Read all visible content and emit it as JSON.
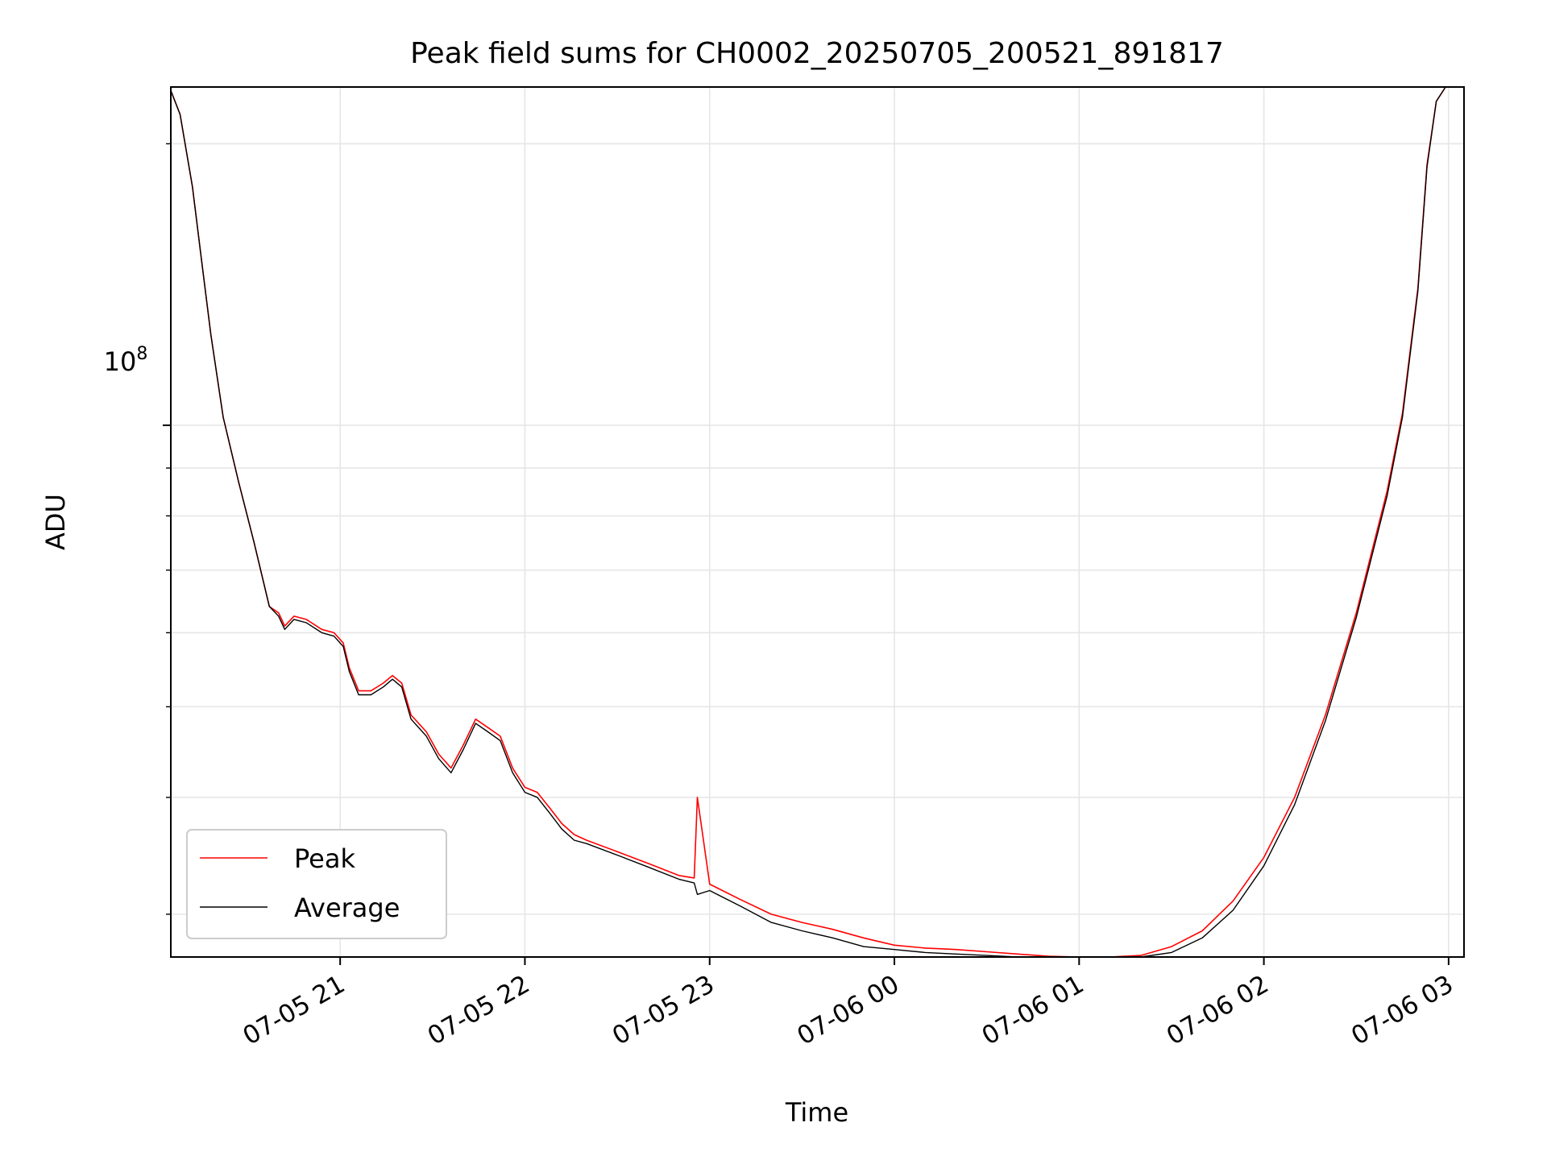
{
  "chart_data": {
    "type": "line",
    "title": "Peak field sums for CH0002_20250705_200521_891817",
    "xlabel": "Time",
    "ylabel": "ADU",
    "y_scale": "log",
    "grid": true,
    "legend_position": "lower-left",
    "x_ticks": [
      {
        "value": "2025-07-05 21:00",
        "label": "07-05 21"
      },
      {
        "value": "2025-07-05 22:00",
        "label": "07-05 22"
      },
      {
        "value": "2025-07-05 23:00",
        "label": "07-05 23"
      },
      {
        "value": "2025-07-06 00:00",
        "label": "07-06 00"
      },
      {
        "value": "2025-07-06 01:00",
        "label": "07-06 01"
      },
      {
        "value": "2025-07-06 02:00",
        "label": "07-06 02"
      },
      {
        "value": "2025-07-06 03:00",
        "label": "07-06 03"
      }
    ],
    "y_major_ticks": [
      {
        "value": 100000000,
        "label": "10^8"
      }
    ],
    "y_minor_ticks": [
      30000000,
      40000000,
      50000000,
      60000000,
      70000000,
      80000000,
      90000000,
      200000000
    ],
    "xlim": [
      "2025-07-05 20:05",
      "2025-07-06 03:05"
    ],
    "ylim": [
      27000000,
      230000000
    ],
    "series": [
      {
        "name": "Peak",
        "color": "#ff0000",
        "x": [
          "2025-07-05 20:05",
          "2025-07-05 20:08",
          "2025-07-05 20:12",
          "2025-07-05 20:15",
          "2025-07-05 20:18",
          "2025-07-05 20:22",
          "2025-07-05 20:27",
          "2025-07-05 20:32",
          "2025-07-05 20:37",
          "2025-07-05 20:40",
          "2025-07-05 20:42",
          "2025-07-05 20:45",
          "2025-07-05 20:49",
          "2025-07-05 20:54",
          "2025-07-05 20:58",
          "2025-07-05 21:01",
          "2025-07-05 21:03",
          "2025-07-05 21:06",
          "2025-07-05 21:10",
          "2025-07-05 21:14",
          "2025-07-05 21:17",
          "2025-07-05 21:20",
          "2025-07-05 21:23",
          "2025-07-05 21:28",
          "2025-07-05 21:32",
          "2025-07-05 21:36",
          "2025-07-05 21:40",
          "2025-07-05 21:44",
          "2025-07-05 21:48",
          "2025-07-05 21:52",
          "2025-07-05 21:56",
          "2025-07-05 22:00",
          "2025-07-05 22:04",
          "2025-07-05 22:08",
          "2025-07-05 22:12",
          "2025-07-05 22:16",
          "2025-07-05 22:20",
          "2025-07-05 22:30",
          "2025-07-05 22:40",
          "2025-07-05 22:50",
          "2025-07-05 22:55",
          "2025-07-05 22:56",
          "2025-07-05 23:00",
          "2025-07-05 23:10",
          "2025-07-05 23:20",
          "2025-07-05 23:30",
          "2025-07-05 23:40",
          "2025-07-05 23:50",
          "2025-07-06 00:00",
          "2025-07-06 00:10",
          "2025-07-06 00:20",
          "2025-07-06 00:30",
          "2025-07-06 00:40",
          "2025-07-06 00:50",
          "2025-07-06 01:00",
          "2025-07-06 01:10",
          "2025-07-06 01:20",
          "2025-07-06 01:30",
          "2025-07-06 01:40",
          "2025-07-06 01:50",
          "2025-07-06 02:00",
          "2025-07-06 02:10",
          "2025-07-06 02:20",
          "2025-07-06 02:30",
          "2025-07-06 02:40",
          "2025-07-06 02:45",
          "2025-07-06 02:50",
          "2025-07-06 02:53",
          "2025-07-06 02:56",
          "2025-07-06 02:59"
        ],
        "values": [
          228000000,
          215000000,
          180000000,
          150000000,
          125000000,
          102000000,
          87000000,
          75000000,
          64000000,
          63000000,
          61000000,
          62500000,
          62000000,
          60500000,
          60000000,
          58500000,
          55000000,
          52000000,
          52000000,
          53000000,
          54000000,
          53000000,
          49000000,
          47000000,
          44500000,
          43000000,
          45500000,
          48500000,
          47500000,
          46500000,
          43000000,
          41000000,
          40500000,
          39000000,
          37500000,
          36500000,
          36000000,
          35000000,
          34000000,
          33000000,
          32800000,
          40000000,
          32300000,
          31100000,
          30000000,
          29400000,
          28900000,
          28300000,
          27800000,
          27600000,
          27500000,
          27350000,
          27200000,
          27050000,
          26950000,
          26900000,
          27100000,
          27700000,
          28800000,
          31000000,
          34500000,
          40000000,
          49000000,
          63000000,
          85000000,
          103000000,
          140000000,
          190000000,
          222000000,
          230000000
        ]
      },
      {
        "name": "Average",
        "color": "#000000",
        "x": [
          "2025-07-05 20:05",
          "2025-07-05 20:08",
          "2025-07-05 20:12",
          "2025-07-05 20:15",
          "2025-07-05 20:18",
          "2025-07-05 20:22",
          "2025-07-05 20:27",
          "2025-07-05 20:32",
          "2025-07-05 20:37",
          "2025-07-05 20:40",
          "2025-07-05 20:42",
          "2025-07-05 20:45",
          "2025-07-05 20:49",
          "2025-07-05 20:54",
          "2025-07-05 20:58",
          "2025-07-05 21:01",
          "2025-07-05 21:03",
          "2025-07-05 21:06",
          "2025-07-05 21:10",
          "2025-07-05 21:14",
          "2025-07-05 21:17",
          "2025-07-05 21:20",
          "2025-07-05 21:23",
          "2025-07-05 21:28",
          "2025-07-05 21:32",
          "2025-07-05 21:36",
          "2025-07-05 21:40",
          "2025-07-05 21:44",
          "2025-07-05 21:48",
          "2025-07-05 21:52",
          "2025-07-05 21:56",
          "2025-07-05 22:00",
          "2025-07-05 22:04",
          "2025-07-05 22:08",
          "2025-07-05 22:12",
          "2025-07-05 22:16",
          "2025-07-05 22:20",
          "2025-07-05 22:30",
          "2025-07-05 22:40",
          "2025-07-05 22:50",
          "2025-07-05 22:55",
          "2025-07-05 22:56",
          "2025-07-05 23:00",
          "2025-07-05 23:10",
          "2025-07-05 23:20",
          "2025-07-05 23:30",
          "2025-07-05 23:40",
          "2025-07-05 23:50",
          "2025-07-06 00:00",
          "2025-07-06 00:10",
          "2025-07-06 00:20",
          "2025-07-06 00:30",
          "2025-07-06 00:40",
          "2025-07-06 00:50",
          "2025-07-06 01:00",
          "2025-07-06 01:10",
          "2025-07-06 01:20",
          "2025-07-06 01:30",
          "2025-07-06 01:40",
          "2025-07-06 01:50",
          "2025-07-06 02:00",
          "2025-07-06 02:10",
          "2025-07-06 02:20",
          "2025-07-06 02:30",
          "2025-07-06 02:40",
          "2025-07-06 02:45",
          "2025-07-06 02:50",
          "2025-07-06 02:53",
          "2025-07-06 02:56",
          "2025-07-06 02:59"
        ],
        "values": [
          228000000,
          215000000,
          180000000,
          150000000,
          125000000,
          102000000,
          87000000,
          75000000,
          64000000,
          62500000,
          60500000,
          62000000,
          61500000,
          60000000,
          59500000,
          58000000,
          54500000,
          51500000,
          51500000,
          52500000,
          53500000,
          52500000,
          48500000,
          46500000,
          44000000,
          42500000,
          45000000,
          48000000,
          47000000,
          46000000,
          42500000,
          40500000,
          40000000,
          38500000,
          37000000,
          36000000,
          35700000,
          34700000,
          33700000,
          32700000,
          32400000,
          31500000,
          31800000,
          30600000,
          29400000,
          28800000,
          28300000,
          27700000,
          27500000,
          27300000,
          27200000,
          27100000,
          27000000,
          26900000,
          26800000,
          26750000,
          26800000,
          27300000,
          28300000,
          30300000,
          33800000,
          39300000,
          48300000,
          62300000,
          84000000,
          102000000,
          139000000,
          189000000,
          222000000,
          230000000
        ]
      }
    ]
  }
}
